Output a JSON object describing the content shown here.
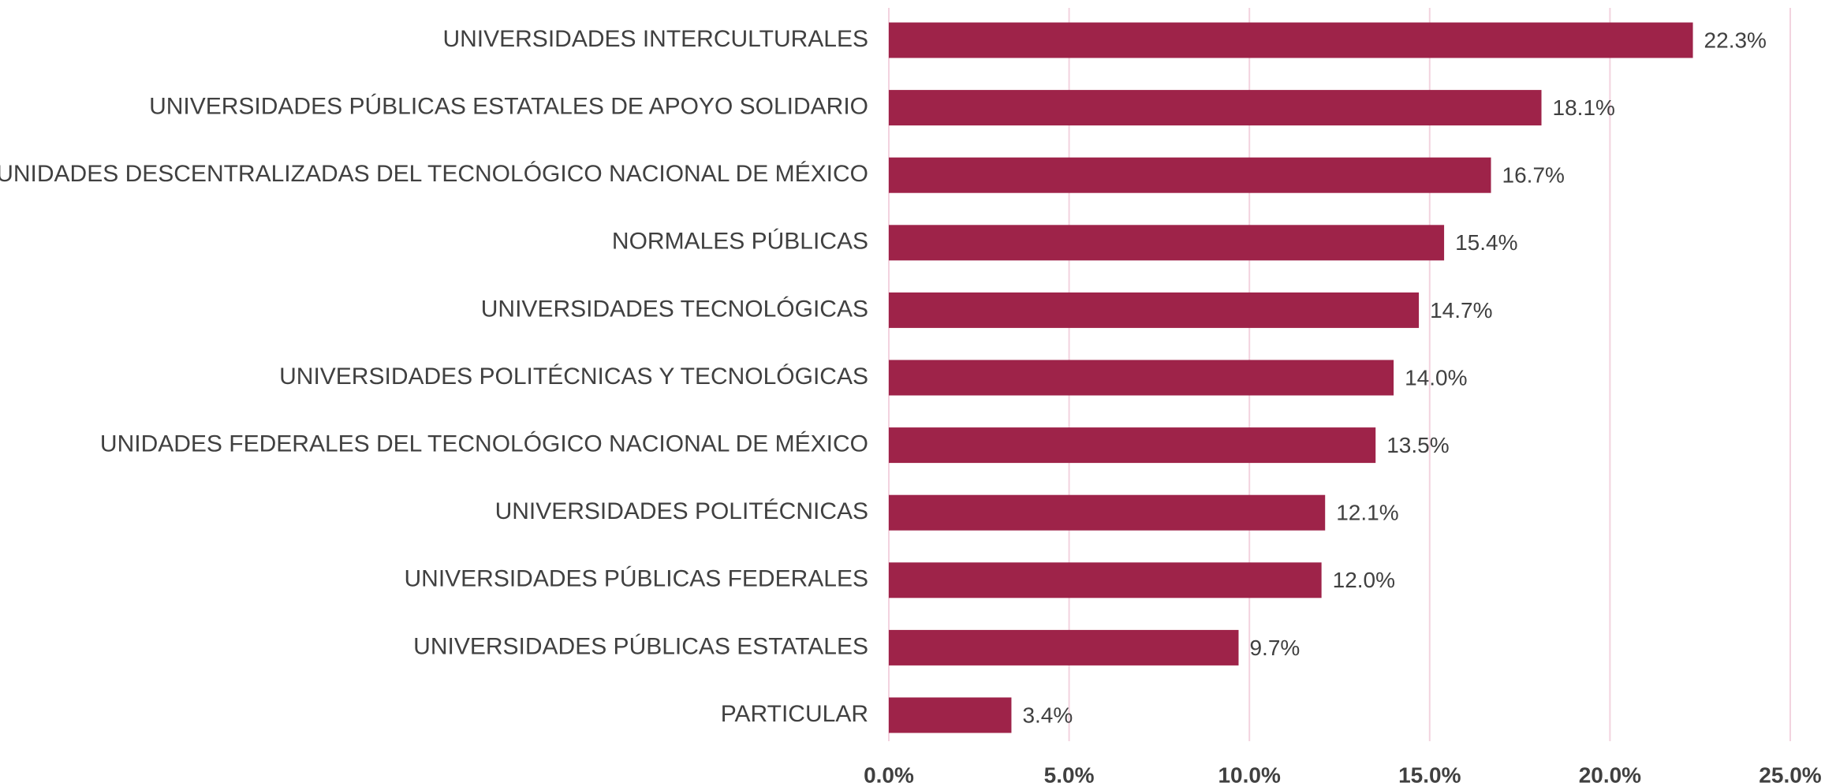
{
  "chart_data": {
    "type": "bar",
    "orientation": "horizontal",
    "categories": [
      "UNIVERSIDADES INTERCULTURALES",
      "UNIVERSIDADES PÚBLICAS ESTATALES DE APOYO SOLIDARIO",
      "UNIDADES DESCENTRALIZADAS DEL TECNOLÓGICO NACIONAL DE MÉXICO",
      "NORMALES PÚBLICAS",
      "UNIVERSIDADES TECNOLÓGICAS",
      "UNIVERSIDADES POLITÉCNICAS Y TECNOLÓGICAS",
      "UNIDADES FEDERALES DEL TECNOLÓGICO NACIONAL DE MÉXICO",
      "UNIVERSIDADES POLITÉCNICAS",
      "UNIVERSIDADES PÚBLICAS FEDERALES",
      "UNIVERSIDADES PÚBLICAS ESTATALES",
      "PARTICULAR"
    ],
    "values": [
      22.3,
      18.1,
      16.7,
      15.4,
      14.7,
      14.0,
      13.5,
      12.1,
      12.0,
      9.7,
      3.4
    ],
    "value_labels": [
      "22.3%",
      "18.1%",
      "16.7%",
      "15.4%",
      "14.7%",
      "14.0%",
      "13.5%",
      "12.1%",
      "12.0%",
      "9.7%",
      "3.4%"
    ],
    "color": "#9e2349",
    "xlim": [
      0,
      25
    ],
    "xticks": [
      {
        "value": 0,
        "label": "0.0%"
      },
      {
        "value": 5,
        "label": "5.0%"
      },
      {
        "value": 10,
        "label": "10.0%"
      },
      {
        "value": 15,
        "label": "15.0%"
      },
      {
        "value": 20,
        "label": "20.0%"
      },
      {
        "value": 25,
        "label": "25.0%"
      }
    ],
    "grid": true
  }
}
